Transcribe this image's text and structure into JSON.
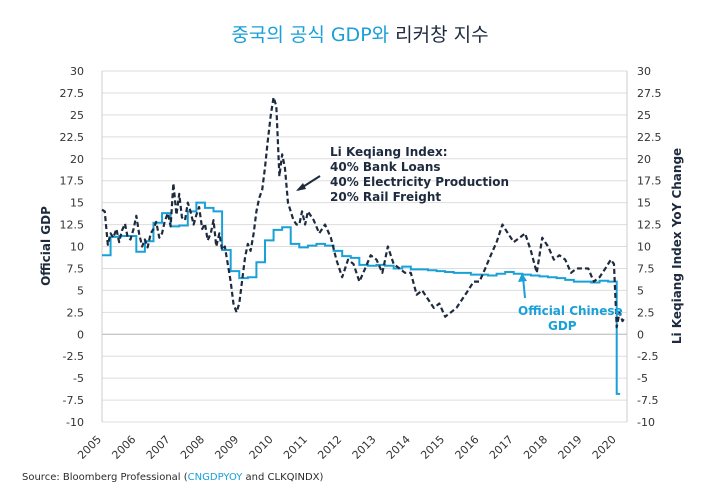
{
  "title": {
    "part1": "중국의 공식 GDP와",
    "part2": " 리커창 지수"
  },
  "footer": {
    "prefix": "Source: Bloomberg Professional (",
    "code": "CNGDPYOY",
    "suffix": " and CLKQINDX)"
  },
  "colors": {
    "official": "#1aa0d8",
    "likeqiang": "#1e2b3f",
    "grid": "#dddddd"
  },
  "chart_data": {
    "type": "line",
    "xlabel": "",
    "ylabel_left": "Official GDP",
    "ylabel_right": "Li Keqiang Index YoY Change",
    "x_ticks": [
      "2005",
      "2006",
      "2007",
      "2008",
      "2009",
      "2010",
      "2011",
      "2012",
      "2013",
      "2014",
      "2015",
      "2016",
      "2017",
      "2018",
      "2019",
      "2020"
    ],
    "y_ticks": [
      "30",
      "27.5",
      "25",
      "22.5",
      "20",
      "17.5",
      "15",
      "12.5",
      "10",
      "7.5",
      "5",
      "2.5",
      "0",
      "-2.5",
      "-5",
      "-7.5",
      "-10"
    ],
    "ylim": [
      -10,
      30
    ],
    "xlim": [
      2005,
      2020.3
    ],
    "grid": true,
    "annotations": {
      "likeqiang": [
        "Li Keqiang Index:",
        "40% Bank Loans",
        "40% Electricity Production",
        "20% Rail Freight"
      ],
      "official": [
        "Official Chinese",
        "GDP"
      ]
    },
    "series": [
      {
        "name": "Official Chinese GDP",
        "style": "step",
        "x": [
          2005.0,
          2005.25,
          2005.5,
          2005.75,
          2006.0,
          2006.25,
          2006.5,
          2006.75,
          2007.0,
          2007.25,
          2007.5,
          2007.75,
          2008.0,
          2008.25,
          2008.5,
          2008.75,
          2009.0,
          2009.25,
          2009.5,
          2009.75,
          2010.0,
          2010.25,
          2010.5,
          2010.75,
          2011.0,
          2011.25,
          2011.5,
          2011.75,
          2012.0,
          2012.25,
          2012.5,
          2012.75,
          2013.0,
          2013.25,
          2013.5,
          2013.75,
          2014.0,
          2014.25,
          2014.5,
          2014.75,
          2015.0,
          2015.25,
          2015.5,
          2015.75,
          2016.0,
          2016.25,
          2016.5,
          2016.75,
          2017.0,
          2017.25,
          2017.5,
          2017.75,
          2018.0,
          2018.25,
          2018.5,
          2018.75,
          2019.0,
          2019.25,
          2019.5,
          2019.75,
          2020.0,
          2020.1
        ],
        "values": [
          9.0,
          11.1,
          11.2,
          11.2,
          9.4,
          10.6,
          12.7,
          13.8,
          12.3,
          12.4,
          14.0,
          15.0,
          14.4,
          14.0,
          9.6,
          7.2,
          6.4,
          6.5,
          8.2,
          10.7,
          11.9,
          12.2,
          10.3,
          9.9,
          10.1,
          10.3,
          10.1,
          9.5,
          8.9,
          8.7,
          7.9,
          7.8,
          7.9,
          7.8,
          7.5,
          7.7,
          7.4,
          7.4,
          7.3,
          7.2,
          7.1,
          7.0,
          7.0,
          6.8,
          6.8,
          6.7,
          6.9,
          7.1,
          6.9,
          6.8,
          6.7,
          6.6,
          6.5,
          6.4,
          6.2,
          6.0,
          6.0,
          5.9,
          6.1,
          6.0,
          -6.8,
          -6.8
        ]
      },
      {
        "name": "Li Keqiang Index",
        "style": "dashed",
        "x": [
          2005.0,
          2005.08,
          2005.17,
          2005.25,
          2005.33,
          2005.42,
          2005.5,
          2005.58,
          2005.67,
          2005.75,
          2005.83,
          2005.92,
          2006.0,
          2006.08,
          2006.17,
          2006.25,
          2006.33,
          2006.42,
          2006.5,
          2006.58,
          2006.67,
          2006.75,
          2006.83,
          2006.92,
          2007.0,
          2007.08,
          2007.17,
          2007.25,
          2007.33,
          2007.42,
          2007.5,
          2007.58,
          2007.67,
          2007.75,
          2007.83,
          2007.92,
          2008.0,
          2008.08,
          2008.17,
          2008.25,
          2008.33,
          2008.42,
          2008.5,
          2008.58,
          2008.67,
          2008.75,
          2008.83,
          2008.92,
          2009.0,
          2009.08,
          2009.17,
          2009.25,
          2009.33,
          2009.42,
          2009.5,
          2009.58,
          2009.67,
          2009.75,
          2009.83,
          2009.92,
          2010.0,
          2010.08,
          2010.17,
          2010.25,
          2010.33,
          2010.42,
          2010.5,
          2010.58,
          2010.67,
          2010.75,
          2010.83,
          2010.92,
          2011.0,
          2011.17,
          2011.33,
          2011.5,
          2011.67,
          2011.83,
          2012.0,
          2012.17,
          2012.33,
          2012.5,
          2012.67,
          2012.83,
          2013.0,
          2013.17,
          2013.33,
          2013.5,
          2013.67,
          2013.83,
          2014.0,
          2014.17,
          2014.33,
          2014.5,
          2014.67,
          2014.83,
          2015.0,
          2015.17,
          2015.33,
          2015.5,
          2015.67,
          2015.83,
          2016.0,
          2016.17,
          2016.33,
          2016.5,
          2016.67,
          2016.83,
          2017.0,
          2017.17,
          2017.33,
          2017.5,
          2017.67,
          2017.83,
          2018.0,
          2018.17,
          2018.33,
          2018.5,
          2018.67,
          2018.83,
          2019.0,
          2019.17,
          2019.33,
          2019.5,
          2019.67,
          2019.83,
          2019.92,
          2020.0,
          2020.08,
          2020.17,
          2020.25
        ],
        "values": [
          14.2,
          14.0,
          10.2,
          11.5,
          11.0,
          12.0,
          10.5,
          11.8,
          12.6,
          11.0,
          10.8,
          12.0,
          13.5,
          11.5,
          10.0,
          10.8,
          9.9,
          11.5,
          12.0,
          12.8,
          11.0,
          11.5,
          12.9,
          13.8,
          12.3,
          17.2,
          13.6,
          16.0,
          13.3,
          13.0,
          15.0,
          14.0,
          12.5,
          13.6,
          14.5,
          12.0,
          12.6,
          10.7,
          11.5,
          13.0,
          10.0,
          11.5,
          9.6,
          10.0,
          7.9,
          6.0,
          3.5,
          2.5,
          3.5,
          6.0,
          8.8,
          10.3,
          9.5,
          11.5,
          14.0,
          15.5,
          16.5,
          19.0,
          22.0,
          25.0,
          27.0,
          26.0,
          18.0,
          20.5,
          19.0,
          15.0,
          14.0,
          13.0,
          12.5,
          12.5,
          14.0,
          12.5,
          14.0,
          13.0,
          11.5,
          12.5,
          11.0,
          8.5,
          6.5,
          8.5,
          8.0,
          6.0,
          7.5,
          9.0,
          8.5,
          7.0,
          10.0,
          8.0,
          7.5,
          7.0,
          7.0,
          4.5,
          5.0,
          4.0,
          3.0,
          3.5,
          2.0,
          2.5,
          3.0,
          4.0,
          5.0,
          6.0,
          6.0,
          7.5,
          9.0,
          10.5,
          12.5,
          11.5,
          10.5,
          11.0,
          11.5,
          9.5,
          7.0,
          11.0,
          10.0,
          8.5,
          9.0,
          8.5,
          7.0,
          7.5,
          7.5,
          7.5,
          6.0,
          6.5,
          7.5,
          8.5,
          8.0,
          0.8,
          2.5,
          1.5,
          2.0
        ]
      }
    ]
  }
}
